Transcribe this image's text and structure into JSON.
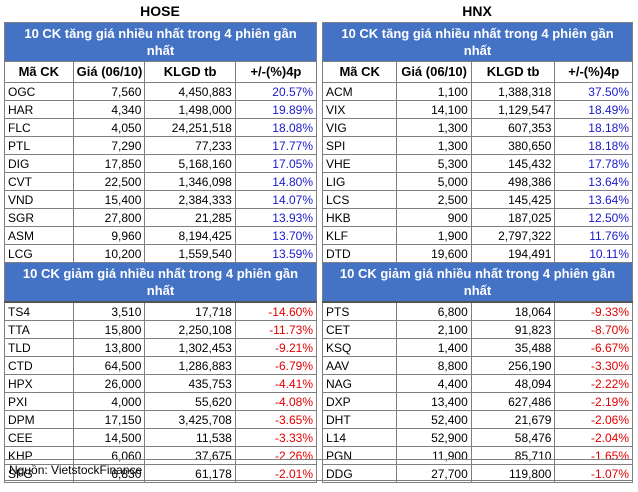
{
  "hose": {
    "title": "HOSE",
    "gain_header": "10 CK tăng giá nhiều nhất trong 4 phiên gần nhất",
    "loss_header": "10 CK giảm giá nhiều nhất trong 4 phiên gần nhất",
    "columns": [
      "Mã CK",
      "Giá (06/10)",
      "KLGD tb",
      "+/-(%)4p"
    ],
    "gainers": [
      {
        "sym": "OGC",
        "price": "7,560",
        "vol": "4,450,883",
        "pct": "20.57%"
      },
      {
        "sym": "HAR",
        "price": "4,340",
        "vol": "1,498,000",
        "pct": "19.89%"
      },
      {
        "sym": "FLC",
        "price": "4,050",
        "vol": "24,251,518",
        "pct": "18.08%"
      },
      {
        "sym": "PTL",
        "price": "7,290",
        "vol": "77,233",
        "pct": "17.77%"
      },
      {
        "sym": "DIG",
        "price": "17,850",
        "vol": "5,168,160",
        "pct": "17.05%"
      },
      {
        "sym": "CVT",
        "price": "22,500",
        "vol": "1,346,098",
        "pct": "14.80%"
      },
      {
        "sym": "VND",
        "price": "15,400",
        "vol": "2,384,333",
        "pct": "14.07%"
      },
      {
        "sym": "SGR",
        "price": "27,800",
        "vol": "21,285",
        "pct": "13.93%"
      },
      {
        "sym": "ASM",
        "price": "9,960",
        "vol": "8,194,425",
        "pct": "13.70%"
      },
      {
        "sym": "LCG",
        "price": "10,200",
        "vol": "1,559,540",
        "pct": "13.59%"
      }
    ],
    "losers": [
      {
        "sym": "TS4",
        "price": "3,510",
        "vol": "17,718",
        "pct": "-14.60%"
      },
      {
        "sym": "TTA",
        "price": "15,800",
        "vol": "2,250,108",
        "pct": "-11.73%"
      },
      {
        "sym": "TLD",
        "price": "13,800",
        "vol": "1,302,453",
        "pct": "-9.21%"
      },
      {
        "sym": "CTD",
        "price": "64,500",
        "vol": "1,286,883",
        "pct": "-6.79%"
      },
      {
        "sym": "HPX",
        "price": "26,000",
        "vol": "435,753",
        "pct": "-4.41%"
      },
      {
        "sym": "PXI",
        "price": "4,000",
        "vol": "55,620",
        "pct": "-4.08%"
      },
      {
        "sym": "DPM",
        "price": "17,150",
        "vol": "3,425,708",
        "pct": "-3.65%"
      },
      {
        "sym": "CEE",
        "price": "14,500",
        "vol": "11,538",
        "pct": "-3.33%"
      },
      {
        "sym": "KHP",
        "price": "6,060",
        "vol": "37,675",
        "pct": "-2.26%"
      },
      {
        "sym": "SFG",
        "price": "6,830",
        "vol": "61,178",
        "pct": "-2.01%"
      }
    ]
  },
  "hnx": {
    "title": "HNX",
    "gain_header": "10 CK tăng giá nhiều nhất trong 4 phiên gần nhất",
    "loss_header": "10 CK giảm giá nhiều nhất trong 4 phiên gần nhất",
    "columns": [
      "Mã CK",
      "Giá (06/10)",
      "KLGD tb",
      "+/-(%)4p"
    ],
    "gainers": [
      {
        "sym": "ACM",
        "price": "1,100",
        "vol": "1,388,318",
        "pct": "37.50%"
      },
      {
        "sym": "VIX",
        "price": "14,100",
        "vol": "1,129,547",
        "pct": "18.49%"
      },
      {
        "sym": "VIG",
        "price": "1,300",
        "vol": "607,353",
        "pct": "18.18%"
      },
      {
        "sym": "SPI",
        "price": "1,300",
        "vol": "380,650",
        "pct": "18.18%"
      },
      {
        "sym": "VHE",
        "price": "5,300",
        "vol": "145,432",
        "pct": "17.78%"
      },
      {
        "sym": "LIG",
        "price": "5,000",
        "vol": "498,386",
        "pct": "13.64%"
      },
      {
        "sym": "LCS",
        "price": "2,500",
        "vol": "145,425",
        "pct": "13.64%"
      },
      {
        "sym": "HKB",
        "price": "900",
        "vol": "187,025",
        "pct": "12.50%"
      },
      {
        "sym": "KLF",
        "price": "1,900",
        "vol": "2,797,322",
        "pct": "11.76%"
      },
      {
        "sym": "DTD",
        "price": "19,600",
        "vol": "194,491",
        "pct": "10.11%"
      }
    ],
    "losers": [
      {
        "sym": "PTS",
        "price": "6,800",
        "vol": "18,064",
        "pct": "-9.33%"
      },
      {
        "sym": "CET",
        "price": "2,100",
        "vol": "91,823",
        "pct": "-8.70%"
      },
      {
        "sym": "KSQ",
        "price": "1,400",
        "vol": "35,488",
        "pct": "-6.67%"
      },
      {
        "sym": "AAV",
        "price": "8,800",
        "vol": "256,190",
        "pct": "-3.30%"
      },
      {
        "sym": "NAG",
        "price": "4,400",
        "vol": "48,094",
        "pct": "-2.22%"
      },
      {
        "sym": "DXP",
        "price": "13,400",
        "vol": "627,486",
        "pct": "-2.19%"
      },
      {
        "sym": "DHT",
        "price": "52,400",
        "vol": "21,679",
        "pct": "-2.06%"
      },
      {
        "sym": "L14",
        "price": "52,900",
        "vol": "58,476",
        "pct": "-2.04%"
      },
      {
        "sym": "PGN",
        "price": "11,900",
        "vol": "85,710",
        "pct": "-1.65%"
      },
      {
        "sym": "DDG",
        "price": "27,700",
        "vol": "119,800",
        "pct": "-1.07%"
      }
    ]
  },
  "source": "Nguồn: VietstockFinance",
  "colors": {
    "header_bg": "#4472c4",
    "positive": "#1a1acc",
    "negative": "#e00000"
  }
}
